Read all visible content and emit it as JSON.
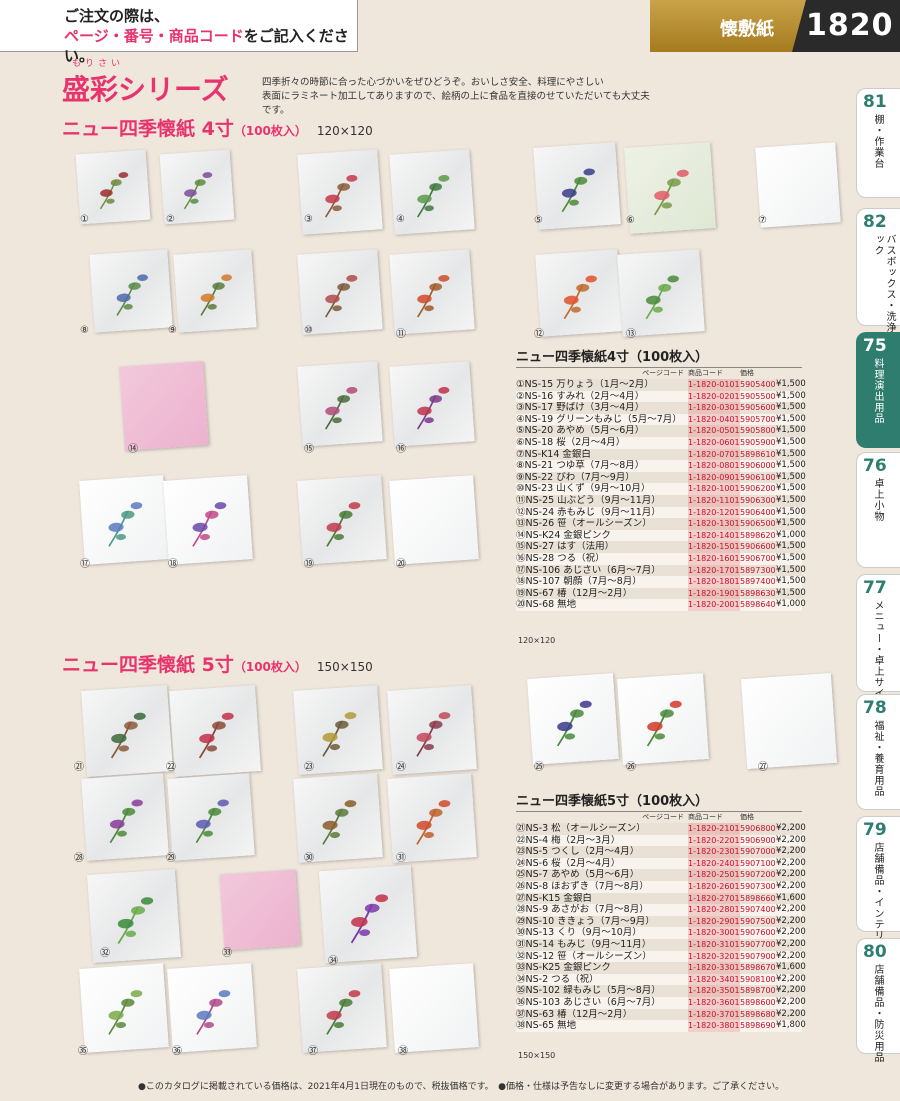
{
  "header": {
    "line1": "ご注文の際は、",
    "line2a": "ページ・番号・商品コード",
    "line2b": "をご記入ください。",
    "category": "懐敷紙",
    "page": "1820"
  },
  "series": {
    "ruby": "もりさい",
    "title": "盛彩シリーズ",
    "desc1": "四季折々の時節に合った心づかいをぜひどうぞ。おいしさ安全、料理にやさしい",
    "desc2": "表面にラミネート加工してありますので、絵柄の上に食品を直接のせていただいても大丈夫です。"
  },
  "sec4": {
    "title": "ニュー四季懐紙 4寸",
    "count": "（100枚入）",
    "dim": "120×120"
  },
  "sec5": {
    "title": "ニュー四季懐紙 5寸",
    "count": "（100枚入）",
    "dim": "150×150"
  },
  "table4": {
    "title": "ニュー四季懐紙4寸（100枚入）",
    "headers": [
      "ページコード",
      "商品コード",
      "価格"
    ],
    "rows": [
      [
        "①NS-15 万りょう（1月～2月）",
        "1-1820-0101",
        "5905400",
        "¥1,500"
      ],
      [
        "②NS-16 すみれ（2月～4月）",
        "1-1820-0201",
        "5905500",
        "¥1,500"
      ],
      [
        "③NS-17 野ばけ（3月～4月）",
        "1-1820-0301",
        "5905600",
        "¥1,500"
      ],
      [
        "④NS-19 グリーンもみじ（5月～7月）",
        "1-1820-0401",
        "5905700",
        "¥1,500"
      ],
      [
        "⑤NS-20 あやめ（5月～6月）",
        "1-1820-0501",
        "5905800",
        "¥1,500"
      ],
      [
        "⑥NS-18 桜（2月～4月）",
        "1-1820-0601",
        "5905900",
        "¥1,500"
      ],
      [
        "⑦NS-K14 金銀白",
        "1-1820-0701",
        "5898610",
        "¥1,500"
      ],
      [
        "⑧NS-21 つゆ草（7月～8月）",
        "1-1820-0801",
        "5906000",
        "¥1,500"
      ],
      [
        "⑨NS-22 びわ（7月～9月）",
        "1-1820-0901",
        "5906100",
        "¥1,500"
      ],
      [
        "⑩NS-23 山くず（9月～10月）",
        "1-1820-1001",
        "5906200",
        "¥1,500"
      ],
      [
        "⑪NS-25 山ぶどう（9月～11月）",
        "1-1820-1101",
        "5906300",
        "¥1,500"
      ],
      [
        "⑫NS-24 赤もみじ（9月～11月）",
        "1-1820-1201",
        "5906400",
        "¥1,500"
      ],
      [
        "⑬NS-26 笹（オールシーズン）",
        "1-1820-1301",
        "5906500",
        "¥1,500"
      ],
      [
        "⑭NS-K24 金銀ピンク",
        "1-1820-1401",
        "5898620",
        "¥1,000"
      ],
      [
        "⑮NS-27 はす（法用）",
        "1-1820-1501",
        "5906600",
        "¥1,500"
      ],
      [
        "⑯NS-28 つる（祝）",
        "1-1820-1601",
        "5906700",
        "¥1,500"
      ],
      [
        "⑰NS-106 あじさい（6月～7月）",
        "1-1820-1701",
        "5897300",
        "¥1,500"
      ],
      [
        "⑱NS-107 朝顔（7月～8月）",
        "1-1820-1801",
        "5897400",
        "¥1,500"
      ],
      [
        "⑲NS-67 椿（12月～2月）",
        "1-1820-1901",
        "5898630",
        "¥1,500"
      ],
      [
        "⑳NS-68 無地",
        "1-1820-2001",
        "5898640",
        "¥1,000"
      ]
    ],
    "note": "120×120"
  },
  "table5": {
    "title": "ニュー四季懐紙5寸（100枚入）",
    "headers": [
      "ページコード",
      "商品コード",
      "価格"
    ],
    "rows": [
      [
        "㉑NS-3 松（オールシーズン）",
        "1-1820-2101",
        "5906800",
        "¥2,200"
      ],
      [
        "㉒NS-4 梅（2月～3月）",
        "1-1820-2201",
        "5906900",
        "¥2,200"
      ],
      [
        "㉓NS-5 つくし（2月～4月）",
        "1-1820-2301",
        "5907000",
        "¥2,200"
      ],
      [
        "㉔NS-6 桜（2月～4月）",
        "1-1820-2401",
        "5907100",
        "¥2,200"
      ],
      [
        "㉕NS-7 あやめ（5月～6月）",
        "1-1820-2501",
        "5907200",
        "¥2,200"
      ],
      [
        "㉖NS-8 ほおずき（7月～8月）",
        "1-1820-2601",
        "5907300",
        "¥2,200"
      ],
      [
        "㉗NS-K15 金銀白",
        "1-1820-2701",
        "5898660",
        "¥1,600"
      ],
      [
        "㉘NS-9 あさがお（7月～8月）",
        "1-1820-2801",
        "5907400",
        "¥2,200"
      ],
      [
        "㉙NS-10 ききょう（7月～9月）",
        "1-1820-2901",
        "5907500",
        "¥2,200"
      ],
      [
        "㉚NS-13 くり（9月～10月）",
        "1-1820-3001",
        "5907600",
        "¥2,200"
      ],
      [
        "㉛NS-14 もみじ（9月～11月）",
        "1-1820-3101",
        "5907700",
        "¥2,200"
      ],
      [
        "㉜NS-12 笹（オールシーズン）",
        "1-1820-3201",
        "5907900",
        "¥2,200"
      ],
      [
        "㉝NS-K25 金銀ピンク",
        "1-1820-3301",
        "5898670",
        "¥1,600"
      ],
      [
        "㉞NS-2 つる（祝）",
        "1-1820-3401",
        "5908100",
        "¥2,200"
      ],
      [
        "㉟NS-102 緑もみじ（5月～8月）",
        "1-1820-3501",
        "5898700",
        "¥2,200"
      ],
      [
        "㊱NS-103 あじさい（6月～7月）",
        "1-1820-3601",
        "5898600",
        "¥2,200"
      ],
      [
        "㊲NS-63 椿（12月～2月）",
        "1-1820-3701",
        "5898680",
        "¥2,200"
      ],
      [
        "㊳NS-65 無地",
        "1-1820-3801",
        "5898690",
        "¥1,800"
      ]
    ],
    "note": "150×150"
  },
  "thumbs": [
    "①",
    "②",
    "③",
    "④",
    "⑤",
    "⑥",
    "⑦",
    "⑧",
    "⑨",
    "⑩",
    "⑪",
    "⑫",
    "⑬",
    "⑭",
    "⑮",
    "⑯",
    "⑰",
    "⑱",
    "⑲",
    "⑳",
    "㉑",
    "㉒",
    "㉓",
    "㉔",
    "㉕",
    "㉖",
    "㉗",
    "㉘",
    "㉙",
    "㉚",
    "㉛",
    "㉜",
    "㉝",
    "㉞",
    "㉟",
    "㊱",
    "㊲",
    "㊳"
  ],
  "tabs": [
    {
      "num": "81",
      "label": "棚・作業台"
    },
    {
      "num": "82",
      "label": "バスボックス・洗浄ラック"
    },
    {
      "num": "75",
      "label": "料理演出用品"
    },
    {
      "num": "76",
      "label": "卓上小物"
    },
    {
      "num": "77",
      "label": "メニュー・卓上サイン"
    },
    {
      "num": "78",
      "label": "福祉・養育用品"
    },
    {
      "num": "79",
      "label": "店舗備品・インテリア"
    },
    {
      "num": "80",
      "label": "店舗備品・防災用品"
    }
  ],
  "footer": "●このカタログに掲載されている価格は、2021年4月1日現在のもので、税抜価格です。　●価格・仕様は予告なしに変更する場合があります。ご了承ください。"
}
